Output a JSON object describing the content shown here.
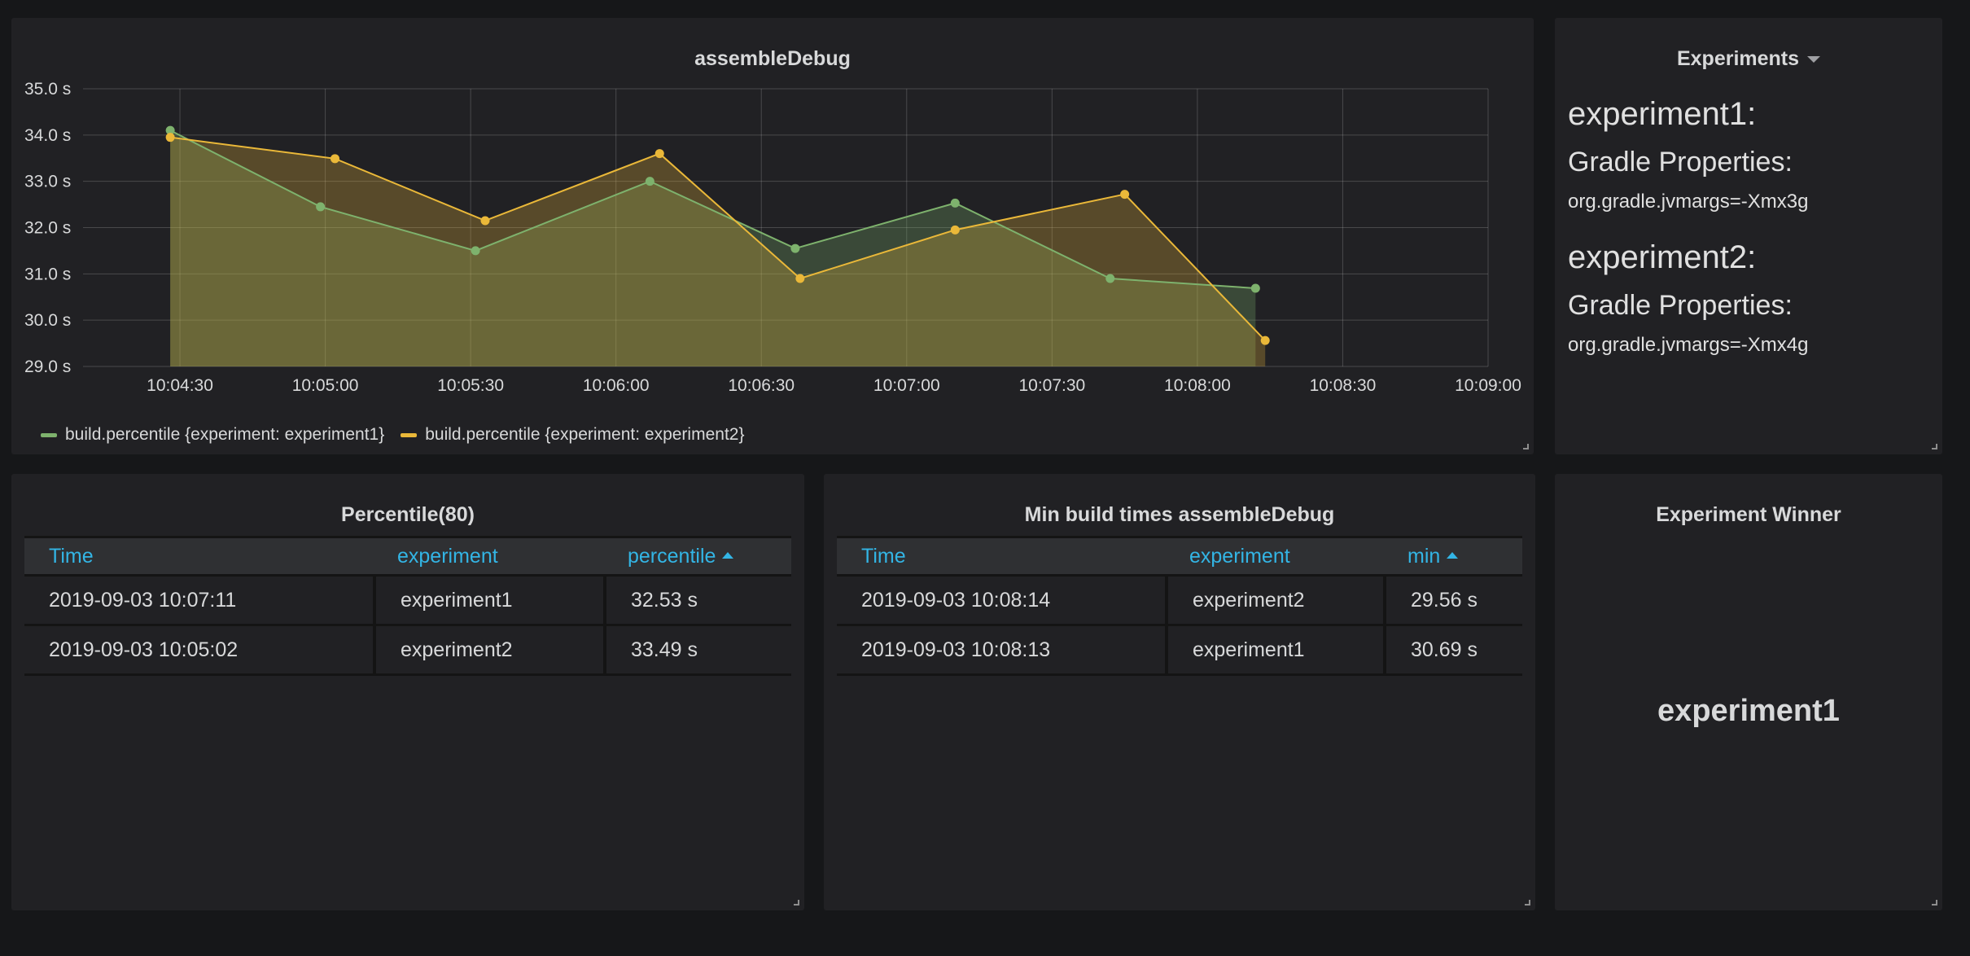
{
  "graph_panel": {
    "title": "assembleDebug"
  },
  "chart_data": {
    "type": "line",
    "title": "assembleDebug",
    "xlabel": "",
    "ylabel": "",
    "ylim": [
      29.0,
      35.0
    ],
    "y_unit": "s",
    "y_ticks": [
      "35.0 s",
      "34.0 s",
      "33.0 s",
      "32.0 s",
      "31.0 s",
      "30.0 s",
      "29.0 s"
    ],
    "x_ticks": [
      "10:04:30",
      "10:05:00",
      "10:05:30",
      "10:06:00",
      "10:06:30",
      "10:07:00",
      "10:07:30",
      "10:08:00",
      "10:08:30",
      "10:09:00"
    ],
    "xlim": [
      "10:04:10",
      "10:09:00"
    ],
    "grid": true,
    "fill": true,
    "legend_position": "bottom",
    "series": [
      {
        "name": "build.percentile {experiment: experiment1}",
        "color": "#7eb26d",
        "x": [
          "10:04:28",
          "10:04:59",
          "10:05:31",
          "10:06:07",
          "10:06:37",
          "10:07:10",
          "10:07:42",
          "10:08:12"
        ],
        "values": [
          34.1,
          32.45,
          31.5,
          33.0,
          31.55,
          32.53,
          30.9,
          30.69
        ]
      },
      {
        "name": "build.percentile {experiment: experiment2}",
        "color": "#eab839",
        "x": [
          "10:04:28",
          "10:05:02",
          "10:05:33",
          "10:06:09",
          "10:06:38",
          "10:07:10",
          "10:07:45",
          "10:08:14"
        ],
        "values": [
          33.95,
          33.49,
          32.15,
          33.6,
          30.9,
          31.95,
          32.72,
          29.56
        ]
      }
    ]
  },
  "experiments_panel": {
    "title": "Experiments",
    "blocks": [
      {
        "heading": "experiment1:",
        "subheading": "Gradle Properties:",
        "value": "org.gradle.jvmargs=-Xmx3g"
      },
      {
        "heading": "experiment2:",
        "subheading": "Gradle Properties:",
        "value": "org.gradle.jvmargs=-Xmx4g"
      }
    ]
  },
  "percentile_panel": {
    "title": "Percentile(80)",
    "columns": [
      "Time",
      "experiment",
      "percentile"
    ],
    "rows": [
      [
        "2019-09-03 10:07:11",
        "experiment1",
        "32.53 s"
      ],
      [
        "2019-09-03 10:05:02",
        "experiment2",
        "33.49 s"
      ]
    ]
  },
  "min_panel": {
    "title": "Min build times assembleDebug",
    "columns": [
      "Time",
      "experiment",
      "min"
    ],
    "rows": [
      [
        "2019-09-03 10:08:14",
        "experiment2",
        "29.56 s"
      ],
      [
        "2019-09-03 10:08:13",
        "experiment1",
        "30.69 s"
      ]
    ]
  },
  "winner_panel": {
    "title": "Experiment Winner",
    "value": "experiment1"
  }
}
